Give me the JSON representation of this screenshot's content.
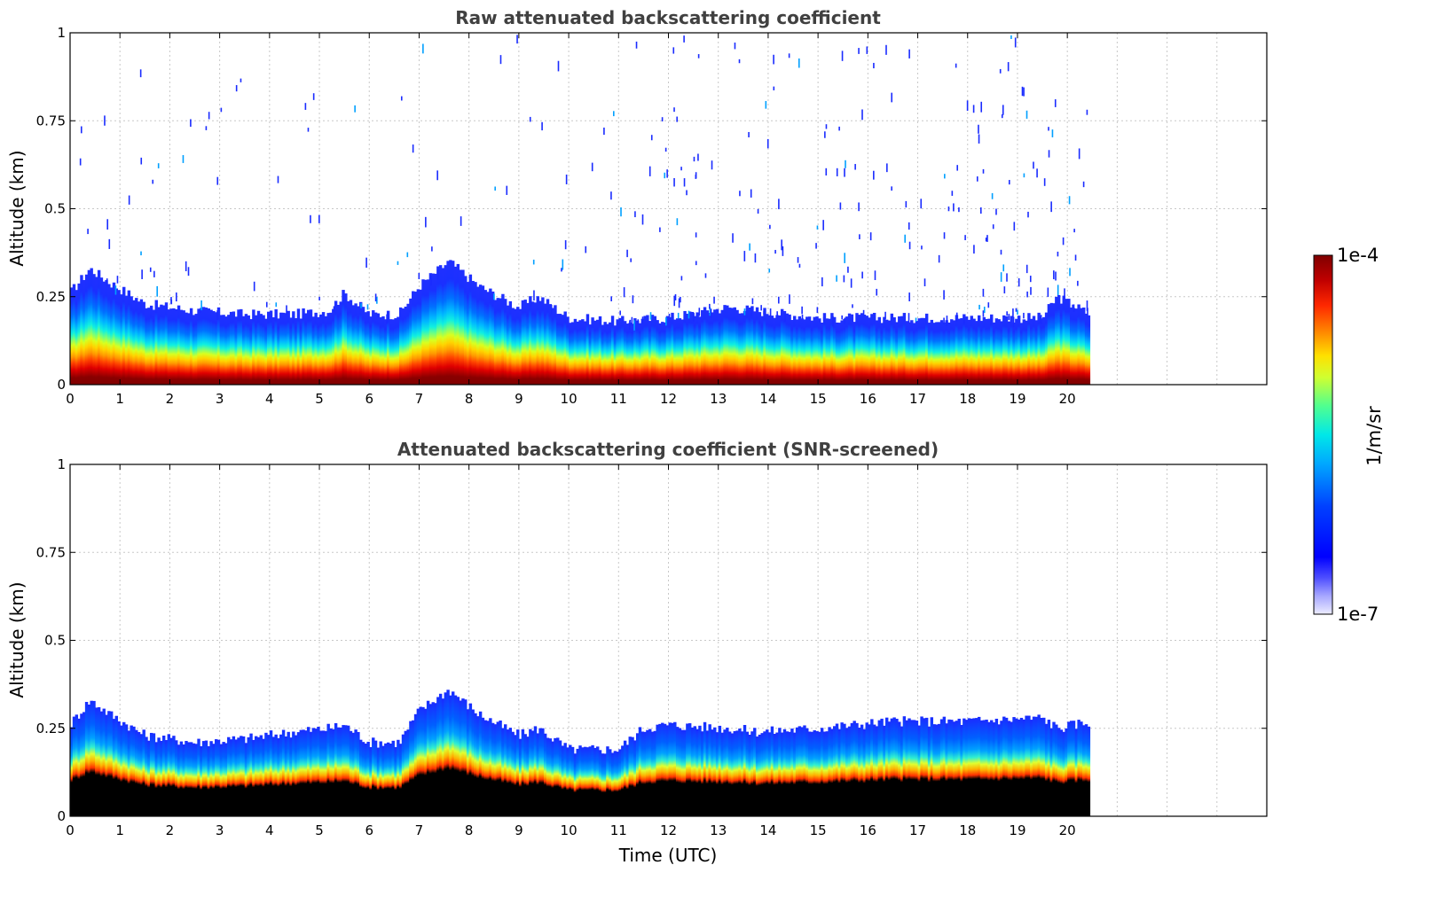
{
  "chart_data": [
    {
      "type": "heatmap",
      "title": "Raw attenuated backscattering coefficient",
      "xlabel": "",
      "ylabel": "Altitude (km)",
      "xlim": [
        0,
        24
      ],
      "ylim": [
        0,
        1
      ],
      "x_ticks": [
        "0",
        "1",
        "2",
        "3",
        "4",
        "5",
        "6",
        "7",
        "8",
        "9",
        "10",
        "11",
        "12",
        "13",
        "14",
        "15",
        "16",
        "17",
        "18",
        "19",
        "20"
      ],
      "y_ticks": [
        "0",
        "0.25",
        "0.5",
        "0.75",
        "1"
      ],
      "grid": true,
      "data_end_time": 20.45,
      "aerosol_layer_top_km": {
        "times": [
          0,
          0.4,
          0.8,
          1.5,
          2.5,
          3.5,
          4.5,
          5.2,
          5.5,
          6,
          6.6,
          7,
          7.6,
          8.2,
          9,
          9.4,
          10,
          11,
          12,
          13.2,
          13.8,
          15,
          16.5,
          18,
          19.5,
          19.8,
          20.45
        ],
        "values": [
          0.26,
          0.33,
          0.29,
          0.23,
          0.21,
          0.2,
          0.2,
          0.21,
          0.26,
          0.2,
          0.2,
          0.28,
          0.35,
          0.28,
          0.22,
          0.25,
          0.19,
          0.18,
          0.19,
          0.22,
          0.21,
          0.19,
          0.19,
          0.19,
          0.19,
          0.25,
          0.2
        ]
      }
    },
    {
      "type": "heatmap",
      "title": "Attenuated backscattering coefficient (SNR-screened)",
      "xlabel": "Time (UTC)",
      "ylabel": "Altitude (km)",
      "xlim": [
        0,
        24
      ],
      "ylim": [
        0,
        1
      ],
      "x_ticks": [
        "0",
        "1",
        "2",
        "3",
        "4",
        "5",
        "6",
        "7",
        "8",
        "9",
        "10",
        "11",
        "12",
        "13",
        "14",
        "15",
        "16",
        "17",
        "18",
        "19",
        "20"
      ],
      "y_ticks": [
        "0",
        "0.25",
        "0.5",
        "0.75",
        "1"
      ],
      "grid": true,
      "data_end_time": 20.45,
      "screened_top_km": {
        "times": [
          0,
          0.4,
          0.8,
          1.5,
          2.5,
          3.5,
          4.5,
          5.2,
          5.5,
          6,
          6.6,
          7,
          7.6,
          8.2,
          9,
          9.4,
          10,
          11,
          11.5,
          12,
          13.2,
          13.8,
          15,
          16.5,
          18,
          19.5,
          19.8,
          20.45
        ],
        "values": [
          0.26,
          0.33,
          0.29,
          0.23,
          0.21,
          0.22,
          0.24,
          0.25,
          0.26,
          0.21,
          0.21,
          0.3,
          0.36,
          0.29,
          0.23,
          0.25,
          0.19,
          0.19,
          0.25,
          0.26,
          0.25,
          0.24,
          0.25,
          0.27,
          0.27,
          0.28,
          0.25,
          0.27
        ]
      }
    }
  ],
  "colorbar": {
    "label": "1/m/sr",
    "max_label": "1e-4",
    "min_label": "1e-7",
    "scale": "log",
    "range": [
      1e-07,
      0.0001
    ]
  },
  "colors": {
    "saturated": "#800000",
    "screened_fill": "#000000",
    "background": "#ffffff"
  }
}
